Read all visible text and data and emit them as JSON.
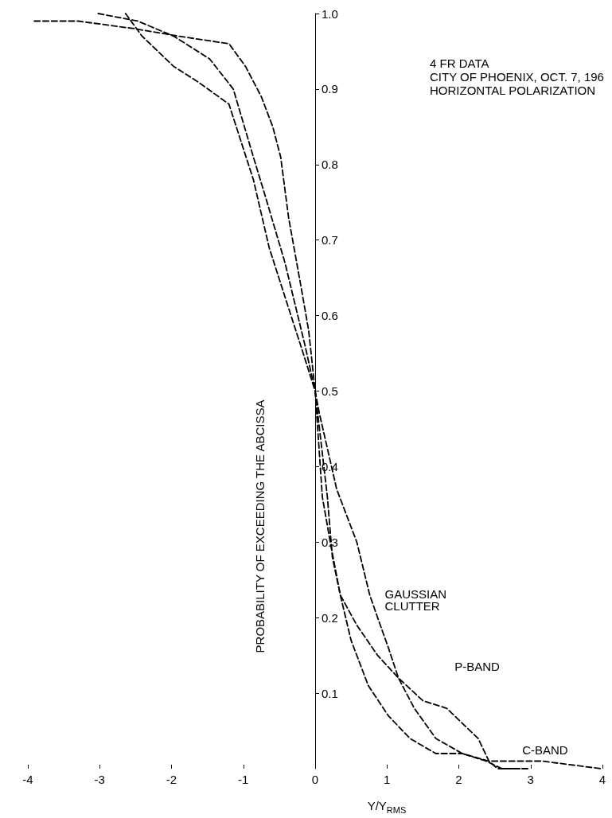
{
  "chart_data": {
    "type": "line",
    "xlabel": "Y/Y$_{RMS}$",
    "ylabel": "PROBABILITY OF EXCEEDING THE ABCISSA",
    "annotations": [
      "4 FR DATA",
      "CITY OF PHOENIX, OCT. 7, 196",
      "HORIZONTAL POLARIZATION"
    ],
    "xlim": [
      -4,
      4
    ],
    "xticks": [
      -4,
      -3,
      -2,
      -1,
      0,
      1,
      2,
      3,
      4
    ],
    "ylim": [
      0,
      1
    ],
    "yticks": [
      0.1,
      0.2,
      0.3,
      0.4,
      0.5,
      0.6,
      0.7,
      0.8,
      0.9,
      {
        "value": 1,
        "label": "1.0"
      }
    ],
    "grid": false,
    "legend": false,
    "marker": "none",
    "line_style": "dashed",
    "series": [
      {
        "name": "GAUSSIAN CLUTTER",
        "color": "#000000",
        "x": [
          -3.02,
          -2.47,
          -1.97,
          -1.47,
          -1.14,
          -0.86,
          -0.7,
          -0.42,
          -0.14,
          0,
          0.06,
          0.3,
          0.58,
          0.76,
          0.87,
          1.02,
          1.16,
          1.38,
          1.68,
          2.05,
          2.38,
          2.6,
          2.98
        ],
        "values": [
          1.0,
          0.99,
          0.97,
          0.94,
          0.9,
          0.81,
          0.76,
          0.67,
          0.56,
          0.5,
          0.47,
          0.37,
          0.3,
          0.23,
          0.2,
          0.16,
          0.12,
          0.08,
          0.04,
          0.02,
          0.01,
          0.0,
          0.0
        ]
      },
      {
        "name": "P-BAND",
        "color": "#000000",
        "x": [
          -2.64,
          -2.41,
          -1.97,
          -1.64,
          -1.2,
          -0.86,
          -0.64,
          -0.37,
          -0.2,
          0,
          0.17,
          0.24,
          0.35,
          0.58,
          0.87,
          1.16,
          1.5,
          1.83,
          2.05,
          2.27,
          2.42,
          2.54,
          2.85
        ],
        "values": [
          1.0,
          0.97,
          0.93,
          0.91,
          0.88,
          0.78,
          0.69,
          0.61,
          0.56,
          0.5,
          0.36,
          0.28,
          0.23,
          0.19,
          0.15,
          0.12,
          0.09,
          0.08,
          0.06,
          0.04,
          0.01,
          0.0,
          0.0
        ]
      },
      {
        "name": "C-BAND",
        "color": "#000000",
        "x": [
          -3.91,
          -3.3,
          -2.52,
          -1.9,
          -1.2,
          -0.97,
          -0.75,
          -0.59,
          -0.48,
          -0.37,
          -0.2,
          -0.09,
          0,
          0.1,
          0.21,
          0.35,
          0.5,
          0.74,
          1.02,
          1.32,
          1.68,
          2.05,
          2.42,
          3.16,
          3.98
        ],
        "values": [
          0.99,
          0.99,
          0.98,
          0.97,
          0.96,
          0.93,
          0.89,
          0.85,
          0.81,
          0.73,
          0.64,
          0.58,
          0.5,
          0.36,
          0.3,
          0.23,
          0.17,
          0.11,
          0.07,
          0.04,
          0.02,
          0.02,
          0.01,
          0.01,
          0.0
        ]
      }
    ]
  }
}
